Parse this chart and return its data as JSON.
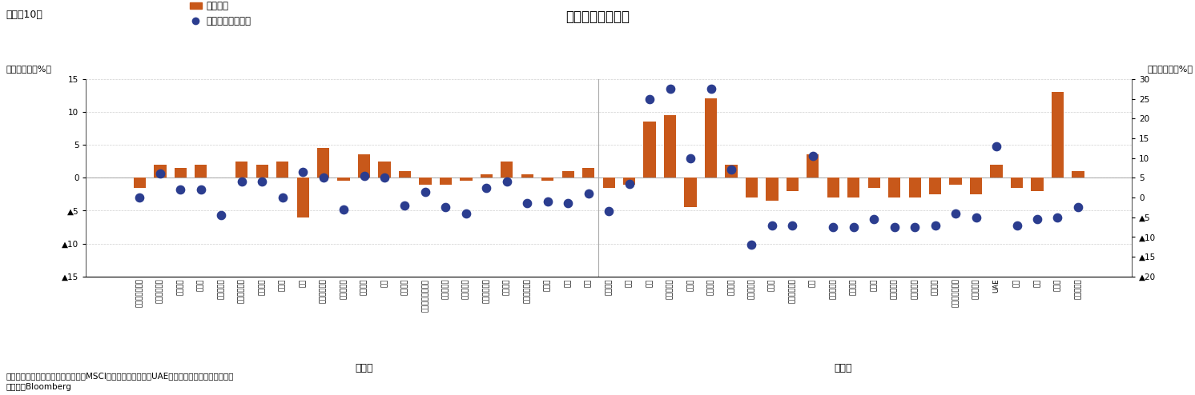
{
  "title": "各国の株価変動率",
  "subtitle": "（図表10）",
  "ylabel_left": "（前月末比、%）",
  "ylabel_right": "（前年末比、%）",
  "legend_bar": "前月末比",
  "legend_dot": "前年末比（右軸）",
  "note1": "（注）各国指数は現地通貨ベースのMSCI構成指数、ただし、UAEはサウジ・タダウル全株指数",
  "note2": "（資料）Bloomberg",
  "group1_label": "先進国",
  "group2_label": "新興国",
  "countries": [
    "オーストラリア",
    "オーストリア",
    "ベルギー",
    "カナダ",
    "デンマーク",
    "フィンランド",
    "フランス",
    "ドイツ",
    "韓国",
    "アイルランド",
    "イスラエル",
    "イタリア",
    "日本",
    "オランダ",
    "ニュージーランド",
    "ノルウェー",
    "ポルトガル",
    "シンガポール",
    "スペイン",
    "スウェーデン",
    "スイス",
    "英国",
    "米国",
    "ブラジル",
    "チリ",
    "中国",
    "コロンビア",
    "チェコ",
    "エジプト",
    "ギリシャ",
    "ハンガリー",
    "インド",
    "インドネシア",
    "韓国",
    "マレーシア",
    "メキシコ",
    "ペルー",
    "フィリピン",
    "ポーランド",
    "カタール",
    "サウジアラビア",
    "南アフリカ",
    "UAE",
    "台湾",
    "タイ",
    "トルコ",
    "クウェート"
  ],
  "bar_values": [
    -1.5,
    2.0,
    1.5,
    2.0,
    0.0,
    2.5,
    2.0,
    2.5,
    -6.0,
    4.5,
    -0.5,
    3.5,
    2.5,
    1.0,
    -1.0,
    -1.0,
    -0.5,
    0.5,
    2.5,
    0.5,
    -0.5,
    1.0,
    1.5,
    -1.5,
    -1.0,
    8.5,
    9.5,
    -4.5,
    12.0,
    2.0,
    -3.0,
    -3.5,
    -2.0,
    3.5,
    -3.0,
    -3.0,
    -1.5,
    -3.0,
    -3.0,
    -2.5,
    -1.0,
    -2.5,
    2.0,
    -1.5,
    -2.0,
    13.0,
    1.0
  ],
  "dot_values": [
    0.0,
    6.0,
    2.0,
    2.0,
    -4.5,
    4.0,
    4.0,
    0.0,
    6.5,
    5.0,
    -3.0,
    5.5,
    5.0,
    -2.0,
    1.5,
    -2.5,
    -4.0,
    2.5,
    4.0,
    -1.5,
    -1.0,
    -1.5,
    1.0,
    -3.5,
    3.5,
    25.0,
    27.5,
    10.0,
    27.5,
    7.0,
    -12.0,
    -7.0,
    -7.0,
    10.5,
    -7.5,
    -7.5,
    -5.5,
    -7.5,
    -7.5,
    -7.0,
    -4.0,
    -5.0,
    13.0,
    -7.0,
    -5.5,
    -5.0,
    -2.5
  ],
  "ylim_left": [
    -15,
    15
  ],
  "ylim_right": [
    -20,
    30
  ],
  "bar_color": "#C8581A",
  "dot_color": "#2B3D8F",
  "background_color": "#ffffff",
  "grid_color": "#d0d0d0",
  "adv_count": 23,
  "emg_count": 24
}
